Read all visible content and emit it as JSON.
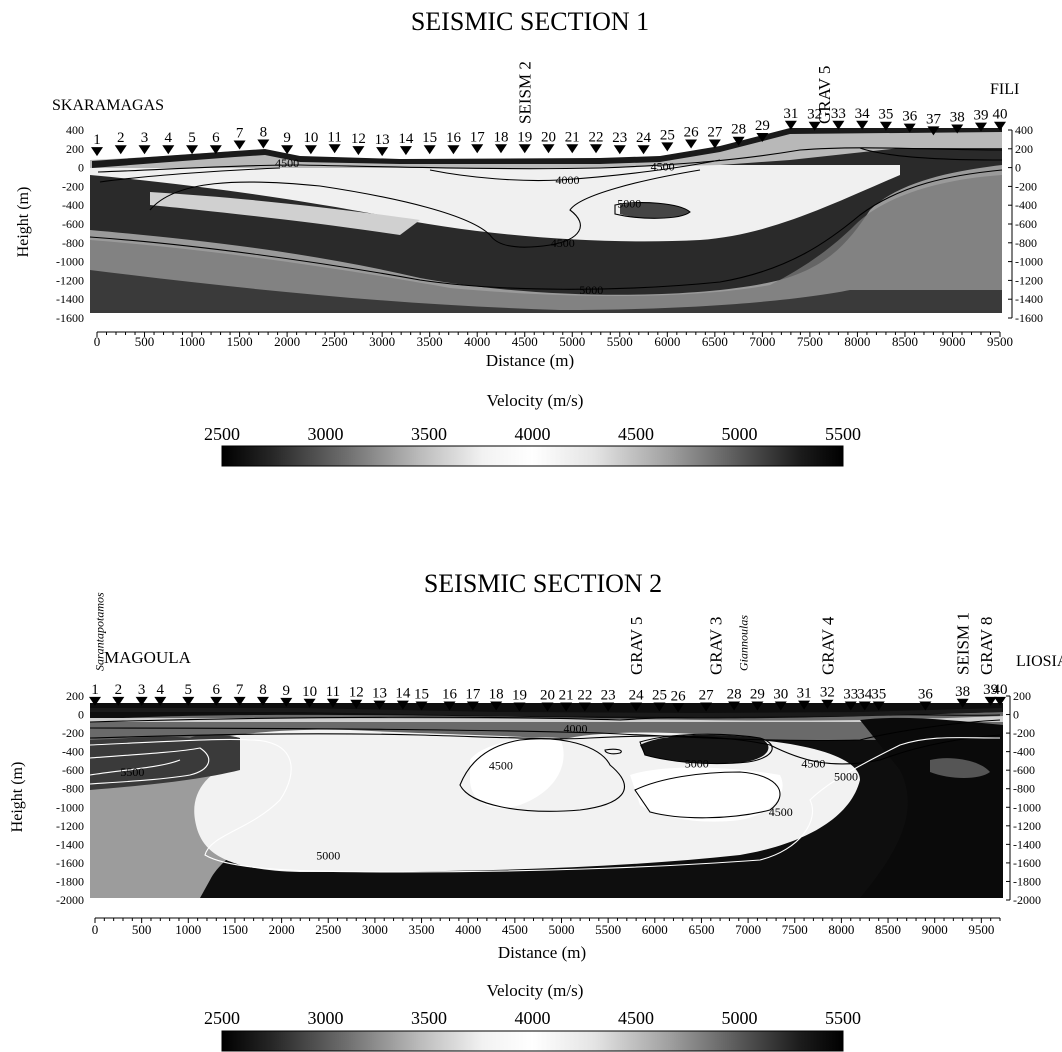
{
  "chart_data": [
    {
      "type": "heatmap",
      "title": "SEISMIC SECTION  1",
      "xlabel": "Distance (m)",
      "ylabel": "Height (m)",
      "xlim": [
        0,
        9500
      ],
      "ylim": [
        -1600,
        400
      ],
      "x_ticks": [
        0,
        500,
        1000,
        1500,
        2000,
        2500,
        3000,
        3500,
        4000,
        4500,
        5000,
        5500,
        6000,
        6500,
        7000,
        7500,
        8000,
        8500,
        9000,
        9500
      ],
      "y_ticks": [
        400,
        200,
        0,
        -200,
        -400,
        -600,
        -800,
        -1000,
        -1200,
        -1400,
        -1600
      ],
      "left_label": "SKARAMAGAS",
      "right_label": "FILI",
      "stations": [
        {
          "n": "1",
          "x": 0,
          "z": 80
        },
        {
          "n": "2",
          "x": 250,
          "z": 100
        },
        {
          "n": "3",
          "x": 500,
          "z": 100
        },
        {
          "n": "4",
          "x": 750,
          "z": 100
        },
        {
          "n": "5",
          "x": 1000,
          "z": 100
        },
        {
          "n": "6",
          "x": 1250,
          "z": 100
        },
        {
          "n": "7",
          "x": 1500,
          "z": 150
        },
        {
          "n": "8",
          "x": 1750,
          "z": 160
        },
        {
          "n": "9",
          "x": 2000,
          "z": 100
        },
        {
          "n": "10",
          "x": 2250,
          "z": 100
        },
        {
          "n": "11",
          "x": 2500,
          "z": 110
        },
        {
          "n": "12",
          "x": 2750,
          "z": 90
        },
        {
          "n": "13",
          "x": 3000,
          "z": 80
        },
        {
          "n": "14",
          "x": 3250,
          "z": 90
        },
        {
          "n": "15",
          "x": 3500,
          "z": 100
        },
        {
          "n": "16",
          "x": 3750,
          "z": 100
        },
        {
          "n": "17",
          "x": 4000,
          "z": 110
        },
        {
          "n": "18",
          "x": 4250,
          "z": 110
        },
        {
          "n": "19",
          "x": 4500,
          "z": 110
        },
        {
          "n": "20",
          "x": 4750,
          "z": 110
        },
        {
          "n": "21",
          "x": 5000,
          "z": 110
        },
        {
          "n": "22",
          "x": 5250,
          "z": 110
        },
        {
          "n": "23",
          "x": 5500,
          "z": 100
        },
        {
          "n": "24",
          "x": 5750,
          "z": 100
        },
        {
          "n": "25",
          "x": 6000,
          "z": 130
        },
        {
          "n": "26",
          "x": 6250,
          "z": 160
        },
        {
          "n": "27",
          "x": 6500,
          "z": 160
        },
        {
          "n": "28",
          "x": 6750,
          "z": 190
        },
        {
          "n": "29",
          "x": 7000,
          "z": 230
        },
        {
          "n": "31",
          "x": 7300,
          "z": 360
        },
        {
          "n": "32",
          "x": 7550,
          "z": 350
        },
        {
          "n": "33",
          "x": 7800,
          "z": 360
        },
        {
          "n": "34",
          "x": 8050,
          "z": 360
        },
        {
          "n": "35",
          "x": 8300,
          "z": 350
        },
        {
          "n": "36",
          "x": 8550,
          "z": 330
        },
        {
          "n": "37",
          "x": 8800,
          "z": 300
        },
        {
          "n": "38",
          "x": 9050,
          "z": 320
        },
        {
          "n": "39",
          "x": 9300,
          "z": 340
        },
        {
          "n": "40",
          "x": 9500,
          "z": 350
        }
      ],
      "markers": [
        {
          "label": "SEISM 2",
          "x": 4500
        },
        {
          "label": "GRAV 5",
          "x": 7650
        }
      ],
      "contour_labels": [
        {
          "v": "4500",
          "x": 2000,
          "z": 50
        },
        {
          "v": "4000",
          "x": 4950,
          "z": -130
        },
        {
          "v": "4500",
          "x": 5950,
          "z": 10
        },
        {
          "v": "5000",
          "x": 5600,
          "z": -380
        },
        {
          "v": "4500",
          "x": 4900,
          "z": -800
        },
        {
          "v": "5000",
          "x": 5200,
          "z": -1300
        }
      ],
      "colorbar": {
        "label": "Velocity (m/s)",
        "min": 2500,
        "max": 5500,
        "ticks": [
          2500,
          3000,
          3500,
          4000,
          4500,
          5000,
          5500
        ]
      }
    },
    {
      "type": "heatmap",
      "title": "SEISMIC SECTION  2",
      "xlabel": "Distance (m)",
      "ylabel": "Height (m)",
      "xlim": [
        0,
        9700
      ],
      "ylim": [
        -2000,
        200
      ],
      "x_ticks": [
        0,
        500,
        1000,
        1500,
        2000,
        2500,
        3000,
        3500,
        4000,
        4500,
        5000,
        5500,
        6000,
        6500,
        7000,
        7500,
        8000,
        8500,
        9000,
        9500
      ],
      "y_ticks": [
        200,
        0,
        -200,
        -400,
        -600,
        -800,
        -1000,
        -1200,
        -1400,
        -1600,
        -1800,
        -2000
      ],
      "left_label": "MAGOULA",
      "right_label": "LIOSIA",
      "stations": [
        {
          "n": "1",
          "x": 0,
          "z": 50
        },
        {
          "n": "2",
          "x": 250,
          "z": 50
        },
        {
          "n": "3",
          "x": 500,
          "z": 50
        },
        {
          "n": "4",
          "x": 700,
          "z": 50
        },
        {
          "n": "5",
          "x": 1000,
          "z": 50
        },
        {
          "n": "6",
          "x": 1300,
          "z": 50
        },
        {
          "n": "7",
          "x": 1550,
          "z": 50
        },
        {
          "n": "8",
          "x": 1800,
          "z": 50
        },
        {
          "n": "9",
          "x": 2050,
          "z": 40
        },
        {
          "n": "10",
          "x": 2300,
          "z": 30
        },
        {
          "n": "11",
          "x": 2550,
          "z": 30
        },
        {
          "n": "12",
          "x": 2800,
          "z": 20
        },
        {
          "n": "13",
          "x": 3050,
          "z": 10
        },
        {
          "n": "14",
          "x": 3300,
          "z": 10
        },
        {
          "n": "15",
          "x": 3500,
          "z": 0
        },
        {
          "n": "16",
          "x": 3800,
          "z": 0
        },
        {
          "n": "17",
          "x": 4050,
          "z": 0
        },
        {
          "n": "18",
          "x": 4300,
          "z": 0
        },
        {
          "n": "19",
          "x": 4550,
          "z": -10
        },
        {
          "n": "20",
          "x": 4850,
          "z": -10
        },
        {
          "n": "21",
          "x": 5050,
          "z": -10
        },
        {
          "n": "22",
          "x": 5250,
          "z": -10
        },
        {
          "n": "23",
          "x": 5500,
          "z": -10
        },
        {
          "n": "24",
          "x": 5800,
          "z": -10
        },
        {
          "n": "25",
          "x": 6050,
          "z": -10
        },
        {
          "n": "26",
          "x": 6250,
          "z": -20
        },
        {
          "n": "27",
          "x": 6550,
          "z": -10
        },
        {
          "n": "28",
          "x": 6850,
          "z": 0
        },
        {
          "n": "29",
          "x": 7100,
          "z": 0
        },
        {
          "n": "30",
          "x": 7350,
          "z": 0
        },
        {
          "n": "31",
          "x": 7600,
          "z": 10
        },
        {
          "n": "32",
          "x": 7850,
          "z": 20
        },
        {
          "n": "33",
          "x": 8100,
          "z": 0
        },
        {
          "n": "34",
          "x": 8250,
          "z": 0
        },
        {
          "n": "35",
          "x": 8400,
          "z": 0
        },
        {
          "n": "36",
          "x": 8900,
          "z": 0
        },
        {
          "n": "38",
          "x": 9300,
          "z": 30
        },
        {
          "n": "39",
          "x": 9600,
          "z": 50
        },
        {
          "n": "40",
          "x": 9700,
          "z": 50
        }
      ],
      "markers": [
        {
          "label": "GRAV 5",
          "x": 5800
        },
        {
          "label": "GRAV 3",
          "x": 6650
        },
        {
          "label": "GRAV 4",
          "x": 7850
        },
        {
          "label": "SEISM 1",
          "x": 9300
        },
        {
          "label": "GRAV 8",
          "x": 9550
        }
      ],
      "italic_labels": [
        {
          "text": "Sarantapotamos",
          "x": 50
        },
        {
          "text": "Giannoulas",
          "x": 6950
        }
      ],
      "contour_labels": [
        {
          "v": "4000",
          "x": 5150,
          "z": -150
        },
        {
          "v": "4500",
          "x": 4350,
          "z": -550
        },
        {
          "v": "5000",
          "x": 6450,
          "z": -530
        },
        {
          "v": "4500",
          "x": 7700,
          "z": -530
        },
        {
          "v": "5000",
          "x": 8050,
          "z": -670
        },
        {
          "v": "4500",
          "x": 7350,
          "z": -1050
        },
        {
          "v": "5000",
          "x": 2500,
          "z": -1520
        },
        {
          "v": "5500",
          "x": 400,
          "z": -620
        }
      ],
      "colorbar": {
        "label": "Velocity (m/s)",
        "min": 2500,
        "max": 5500,
        "ticks": [
          2500,
          3000,
          3500,
          4000,
          4500,
          5000,
          5500
        ]
      }
    }
  ]
}
